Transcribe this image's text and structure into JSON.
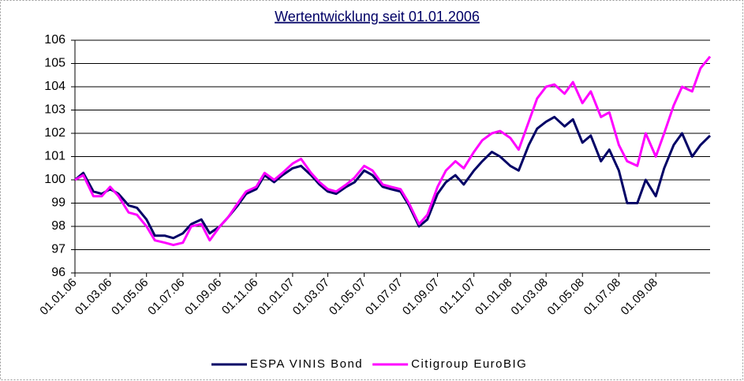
{
  "chart_data": {
    "type": "line",
    "title": "Wertentwicklung seit 01.01.2006",
    "x": [
      "01.01.06",
      "15.01.06",
      "01.02.06",
      "15.02.06",
      "01.03.06",
      "15.03.06",
      "01.04.06",
      "15.04.06",
      "01.05.06",
      "15.05.06",
      "01.06.06",
      "15.06.06",
      "01.07.06",
      "15.07.06",
      "01.08.06",
      "15.08.06",
      "01.09.06",
      "15.09.06",
      "01.10.06",
      "15.10.06",
      "01.11.06",
      "15.11.06",
      "01.12.06",
      "15.12.06",
      "01.01.07",
      "15.01.07",
      "01.02.07",
      "15.02.07",
      "01.03.07",
      "15.03.07",
      "01.04.07",
      "15.04.07",
      "01.05.07",
      "15.05.07",
      "01.06.07",
      "15.06.07",
      "01.07.07",
      "15.07.07",
      "01.08.07",
      "15.08.07",
      "01.09.07",
      "15.09.07",
      "01.10.07",
      "15.10.07",
      "01.11.07",
      "15.11.07",
      "01.12.07",
      "15.12.07",
      "01.01.08",
      "15.01.08",
      "01.02.08",
      "15.02.08",
      "01.03.08",
      "15.03.08",
      "01.04.08",
      "15.04.08",
      "01.05.08",
      "15.05.08",
      "01.06.08",
      "15.06.08",
      "01.07.08",
      "15.07.08",
      "01.08.08",
      "15.08.08",
      "01.09.08",
      "15.09.08",
      "01.10.08",
      "15.10.08",
      "01.11.08",
      "15.11.08",
      "01.12.08"
    ],
    "series": [
      {
        "name": "ESPA VINIS Bond",
        "color": "#000066",
        "values": [
          100,
          100.3,
          99.5,
          99.4,
          99.6,
          99.4,
          98.9,
          98.8,
          98.3,
          97.6,
          97.6,
          97.5,
          97.7,
          98.1,
          98.3,
          97.7,
          98.0,
          98.4,
          98.9,
          99.4,
          99.6,
          100.2,
          99.9,
          100.2,
          100.5,
          100.6,
          100.2,
          99.8,
          99.5,
          99.4,
          99.7,
          99.9,
          100.4,
          100.2,
          99.7,
          99.6,
          99.5,
          98.9,
          98.0,
          98.3,
          99.4,
          99.9,
          100.2,
          99.8,
          100.4,
          100.8,
          101.2,
          101.0,
          100.6,
          100.4,
          101.5,
          102.2,
          102.5,
          102.7,
          102.3,
          102.6,
          101.6,
          101.9,
          100.8,
          101.3,
          100.4,
          99.0,
          99.0,
          100.0,
          99.3,
          100.5,
          101.5,
          102.0,
          101.0,
          101.5,
          101.9
        ]
      },
      {
        "name": "Citigroup EuroBIG",
        "color": "#ff00ff",
        "values": [
          100,
          100.2,
          99.3,
          99.3,
          99.7,
          99.3,
          98.6,
          98.5,
          98.0,
          97.4,
          97.3,
          97.2,
          97.3,
          98.0,
          98.1,
          97.4,
          98.0,
          98.4,
          99.0,
          99.5,
          99.7,
          100.3,
          100.0,
          100.3,
          100.7,
          100.9,
          100.3,
          99.9,
          99.6,
          99.5,
          99.8,
          100.1,
          100.6,
          100.4,
          99.8,
          99.7,
          99.6,
          99.0,
          98.1,
          98.5,
          99.7,
          100.4,
          100.8,
          100.5,
          101.2,
          101.7,
          102.0,
          102.1,
          101.8,
          101.3,
          102.5,
          103.5,
          104.0,
          104.1,
          103.7,
          104.2,
          103.3,
          103.8,
          102.7,
          102.9,
          101.5,
          100.8,
          100.6,
          102.0,
          101.0,
          102.0,
          103.2,
          104.0,
          103.8,
          104.8,
          105.3
        ]
      }
    ],
    "ylim": [
      96,
      106
    ],
    "yticks": [
      96,
      97,
      98,
      99,
      100,
      101,
      102,
      103,
      104,
      105,
      106
    ],
    "xlim": [
      "01.01.06",
      "01.12.08"
    ],
    "xticks": [
      "01.01.06",
      "01.03.06",
      "01.05.06",
      "01.07.06",
      "01.09.06",
      "01.11.06",
      "01.01.07",
      "01.03.07",
      "01.05.07",
      "01.07.07",
      "01.09.07",
      "01.11.07",
      "01.01.08",
      "01.03.08",
      "01.05.08",
      "01.07.08",
      "01.09.08"
    ],
    "grid": true,
    "legend": "bottom"
  }
}
